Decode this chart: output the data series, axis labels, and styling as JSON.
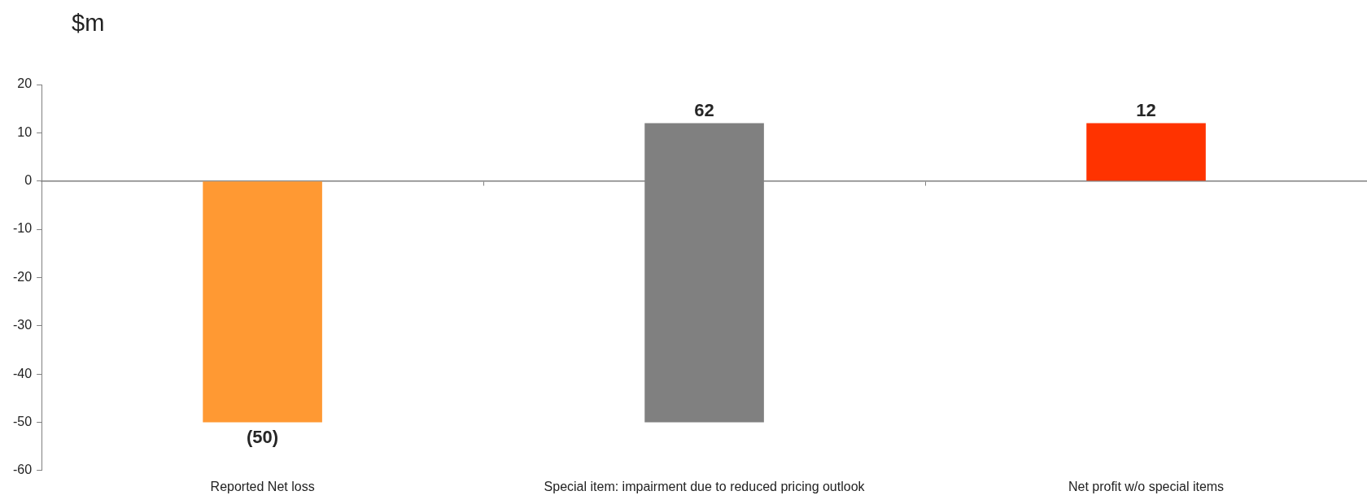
{
  "chart_data": {
    "type": "bar",
    "ylabel": "$m",
    "categories": [
      "Reported Net loss",
      "Special item: impairment due to reduced pricing outlook",
      "Net profit w/o special items"
    ],
    "values": [
      -50,
      62,
      12
    ],
    "base": [
      0,
      -50,
      0
    ],
    "colors": [
      "#ff9933",
      "#808080",
      "#ff3300"
    ],
    "value_labels": [
      "(50)",
      "62",
      "12"
    ],
    "ylim": [
      -60,
      20
    ],
    "yticks": [
      -60,
      -50,
      -40,
      -30,
      -20,
      -10,
      0,
      10,
      20
    ],
    "legend": false
  }
}
